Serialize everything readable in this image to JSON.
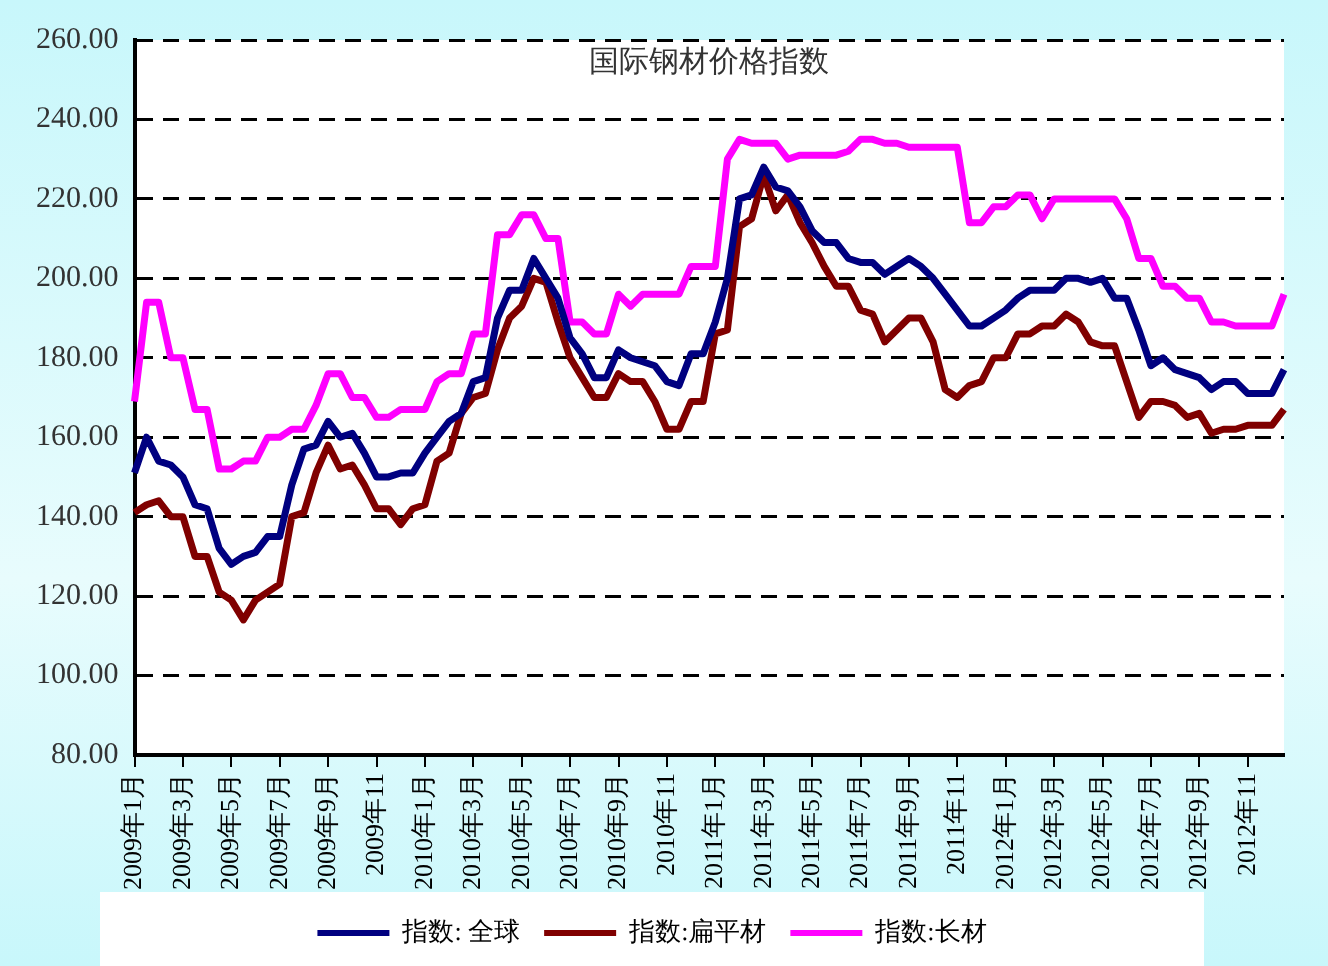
{
  "chart_data": {
    "type": "line",
    "title": "国际钢材价格指数",
    "categories": [
      "2009年1月",
      null,
      null,
      null,
      "2009年3月",
      null,
      null,
      null,
      "2009年5月",
      null,
      null,
      null,
      "2009年7月",
      null,
      null,
      null,
      "2009年9月",
      null,
      null,
      null,
      "2009年11",
      null,
      null,
      null,
      "2010年1月",
      null,
      null,
      null,
      "2010年3月",
      null,
      null,
      null,
      "2010年5月",
      null,
      null,
      null,
      "2010年7月",
      null,
      null,
      null,
      "2010年9月",
      null,
      null,
      null,
      "2010年11",
      null,
      null,
      null,
      "2011年1月",
      null,
      null,
      null,
      "2011年3月",
      null,
      null,
      null,
      "2011年5月",
      null,
      null,
      null,
      "2011年7月",
      null,
      null,
      null,
      "2011年9月",
      null,
      null,
      null,
      "2011年11",
      null,
      null,
      null,
      "2012年1月",
      null,
      null,
      null,
      "2012年3月",
      null,
      null,
      null,
      "2012年5月",
      null,
      null,
      null,
      "2012年7月",
      null,
      null,
      null,
      "2012年9月",
      null,
      null,
      null,
      "2012年11",
      null,
      null,
      null
    ],
    "series": [
      {
        "name": "指数: 全球",
        "color": "#000080",
        "values": [
          151,
          160,
          154,
          153,
          150,
          143,
          142,
          132,
          128,
          130,
          131,
          135,
          135,
          148,
          157,
          158,
          164,
          160,
          161,
          156,
          150,
          150,
          151,
          151,
          156,
          160,
          164,
          166,
          174,
          175,
          190,
          197,
          197,
          205,
          200,
          195,
          185,
          181,
          175,
          175,
          182,
          180,
          179,
          178,
          174,
          173,
          181,
          181,
          189,
          200,
          220,
          221,
          228,
          223,
          222,
          218,
          212,
          209,
          209,
          205,
          204,
          204,
          201,
          203,
          205,
          203,
          200,
          196,
          192,
          188,
          188,
          190,
          192,
          195,
          197,
          197,
          197,
          200,
          200,
          199,
          200,
          195,
          195,
          187,
          178,
          180,
          177,
          176,
          175,
          172,
          174,
          174,
          171,
          171,
          171,
          177
        ]
      },
      {
        "name": "指数:扁平材",
        "color": "#800000",
        "values": [
          141,
          143,
          144,
          140,
          140,
          130,
          130,
          121,
          119,
          114,
          119,
          121,
          123,
          140,
          141,
          151,
          158,
          152,
          153,
          148,
          142,
          142,
          138,
          142,
          143,
          154,
          156,
          166,
          170,
          171,
          182,
          190,
          193,
          200,
          199,
          189,
          180,
          175,
          170,
          170,
          176,
          174,
          174,
          169,
          162,
          162,
          169,
          169,
          186,
          187,
          213,
          215,
          226,
          217,
          221,
          214,
          209,
          203,
          198,
          198,
          192,
          191,
          184,
          187,
          190,
          190,
          184,
          172,
          170,
          173,
          174,
          180,
          180,
          186,
          186,
          188,
          188,
          191,
          189,
          184,
          183,
          183,
          174,
          165,
          169,
          169,
          168,
          165,
          166,
          161,
          162,
          162,
          163,
          163,
          163,
          167
        ]
      },
      {
        "name": "指数:长材",
        "color": "#ff00ff",
        "values": [
          169,
          194,
          194,
          180,
          180,
          167,
          167,
          152,
          152,
          154,
          154,
          160,
          160,
          162,
          162,
          168,
          176,
          176,
          170,
          170,
          165,
          165,
          167,
          167,
          167,
          174,
          176,
          176,
          186,
          186,
          211,
          211,
          216,
          216,
          210,
          210,
          189,
          189,
          186,
          186,
          196,
          193,
          196,
          196,
          196,
          196,
          203,
          203,
          203,
          230,
          235,
          234,
          234,
          234,
          230,
          231,
          231,
          231,
          231,
          232,
          235,
          235,
          234,
          234,
          233,
          233,
          233,
          233,
          233,
          214,
          214,
          218,
          218,
          221,
          221,
          215,
          220,
          220,
          220,
          220,
          220,
          220,
          215,
          205,
          205,
          198,
          198,
          195,
          195,
          189,
          189,
          188,
          188,
          188,
          188,
          196
        ]
      }
    ],
    "ylim": [
      80,
      260
    ],
    "yticks": [
      {
        "value": 80,
        "label": "80.00"
      },
      {
        "value": 100,
        "label": "100.00"
      },
      {
        "value": 120,
        "label": "120.00"
      },
      {
        "value": 140,
        "label": "140.00"
      },
      {
        "value": 160,
        "label": "160.00"
      },
      {
        "value": 180,
        "label": "180.00"
      },
      {
        "value": 200,
        "label": "200.00"
      },
      {
        "value": 220,
        "label": "220.00"
      },
      {
        "value": 240,
        "label": "240.00"
      },
      {
        "value": 260,
        "label": "260.00"
      }
    ],
    "grid": "y",
    "line_style": "solid",
    "marker": "none",
    "legend": "bottom"
  }
}
